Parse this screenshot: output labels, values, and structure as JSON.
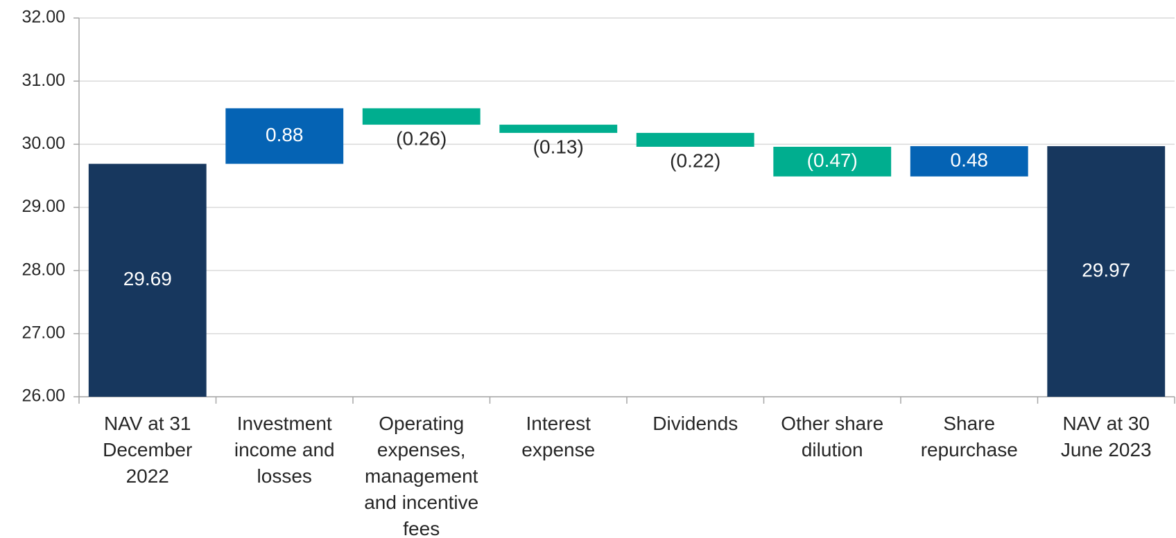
{
  "chart_data": {
    "type": "waterfall",
    "categories": [
      "NAV at 31 December 2022",
      "Investment income and losses",
      "Operating expenses, management and incentive fees",
      "Interest expense",
      "Dividends",
      "Other share dilution",
      "Share repurchase",
      "NAV at 30 June 2023"
    ],
    "values": [
      29.69,
      0.88,
      -0.26,
      -0.13,
      -0.22,
      -0.47,
      0.48,
      29.97
    ],
    "value_labels": [
      "29.69",
      "0.88",
      "(0.26)",
      "(0.13)",
      "(0.22)",
      "(0.47)",
      "0.48",
      "29.97"
    ],
    "colors": [
      "#17375e",
      "#0563b4",
      "#00ae8f",
      "#00ae8f",
      "#00ae8f",
      "#00ae8f",
      "#0563b4",
      "#17375e"
    ],
    "ylim": [
      26,
      32
    ],
    "yticks": [
      {
        "value": 26,
        "label": "26.00"
      },
      {
        "value": 27,
        "label": "27.00"
      },
      {
        "value": 28,
        "label": "28.00"
      },
      {
        "value": 29,
        "label": "29.00"
      },
      {
        "value": 30,
        "label": "30.00"
      },
      {
        "value": 31,
        "label": "31.00"
      },
      {
        "value": 32,
        "label": "32.00"
      }
    ],
    "grid": true
  }
}
